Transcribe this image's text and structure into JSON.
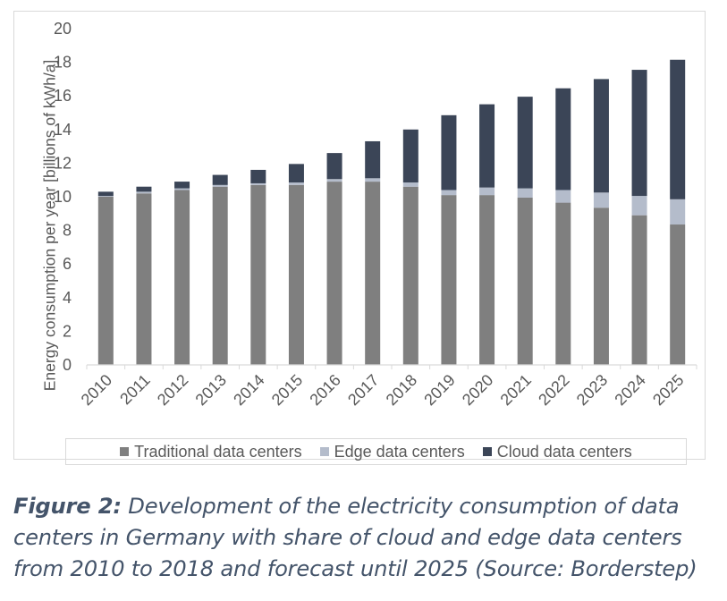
{
  "chart_data": {
    "type": "bar",
    "stacked": true,
    "categories": [
      "2010",
      "2011",
      "2012",
      "2013",
      "2014",
      "2015",
      "2016",
      "2017",
      "2018",
      "2019",
      "2020",
      "2021",
      "2022",
      "2023",
      "2024",
      "2025"
    ],
    "series": [
      {
        "name": "Traditional data centers",
        "color": "#7f7f7f",
        "values": [
          10.0,
          10.2,
          10.4,
          10.6,
          10.7,
          10.7,
          10.9,
          10.9,
          10.6,
          10.1,
          10.1,
          9.95,
          9.65,
          9.35,
          8.9,
          8.35
        ]
      },
      {
        "name": "Edge data centers",
        "color": "#b4bccb",
        "values": [
          0.05,
          0.1,
          0.1,
          0.1,
          0.1,
          0.15,
          0.15,
          0.2,
          0.25,
          0.3,
          0.45,
          0.55,
          0.75,
          0.9,
          1.15,
          1.5
        ]
      },
      {
        "name": "Cloud data centers",
        "color": "#3b4557",
        "values": [
          0.25,
          0.3,
          0.4,
          0.6,
          0.8,
          1.1,
          1.55,
          2.2,
          3.15,
          4.45,
          4.95,
          5.45,
          6.05,
          6.75,
          7.5,
          8.3
        ]
      }
    ],
    "ylabel": "Energy consumption per year [billions of kWh/a]",
    "ylim": [
      0,
      20
    ],
    "yticks": [
      "0",
      "2",
      "4",
      "6",
      "8",
      "10",
      "12",
      "14",
      "16",
      "18",
      "20"
    ],
    "grid": false,
    "legend_position": "bottom"
  },
  "caption": {
    "label": "Figure 2:",
    "text": " Development of the electricity consumption of data centers in Germany with share of cloud and edge data centers from 2010 to 2018 and forecast until 2025 (Source: Borderstep)"
  }
}
